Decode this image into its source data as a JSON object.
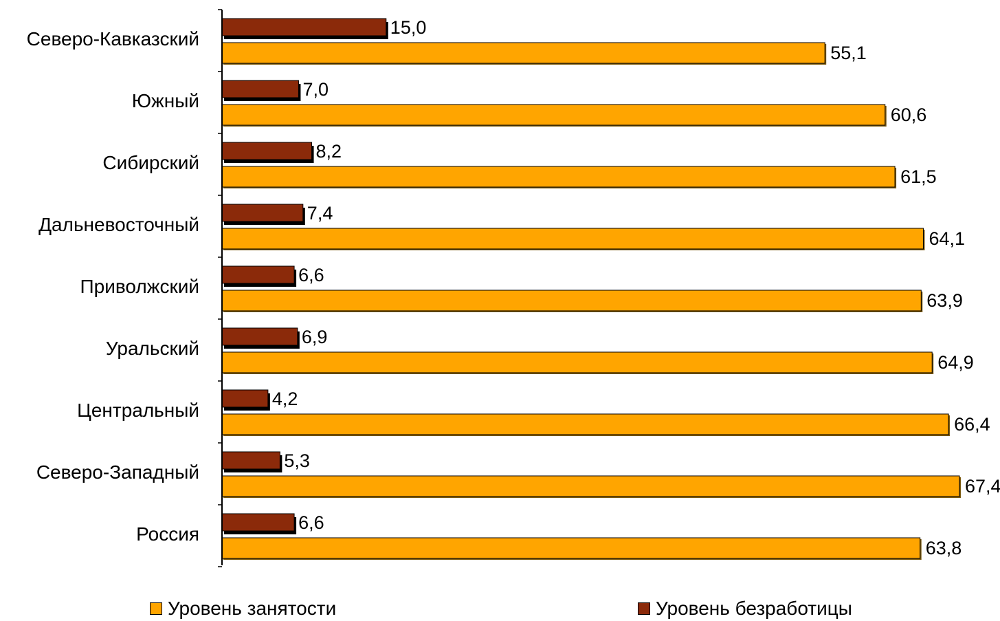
{
  "chart_data": {
    "type": "bar",
    "orientation": "horizontal",
    "categories": [
      "Северо-Кавказский",
      "Южный",
      "Сибирский",
      "Дальневосточный",
      "Приволжский",
      "Уральский",
      "Центральный",
      "Северо-Западный",
      "Россия"
    ],
    "series": [
      {
        "name": "Уровень безработицы",
        "color": "#8B2A0A",
        "values": [
          15.0,
          7.0,
          8.2,
          7.4,
          6.6,
          6.9,
          4.2,
          5.3,
          6.6
        ],
        "labels": [
          "15,0",
          "7,0",
          "8,2",
          "7,4",
          "6,6",
          "6,9",
          "4,2",
          "5,3",
          "6,6"
        ]
      },
      {
        "name": "Уровень занятости",
        "color": "#FFA500",
        "values": [
          55.1,
          60.6,
          61.5,
          64.1,
          63.9,
          64.9,
          66.4,
          67.4,
          63.8
        ],
        "labels": [
          "55,1",
          "60,6",
          "61,5",
          "64,1",
          "63,9",
          "64,9",
          "66,4",
          "67,4",
          "63,8"
        ]
      }
    ],
    "legend_position": "bottom",
    "grid": false
  },
  "legend": {
    "employment_label": "Уровень занятости",
    "unemployment_label": "Уровень безработицы"
  }
}
